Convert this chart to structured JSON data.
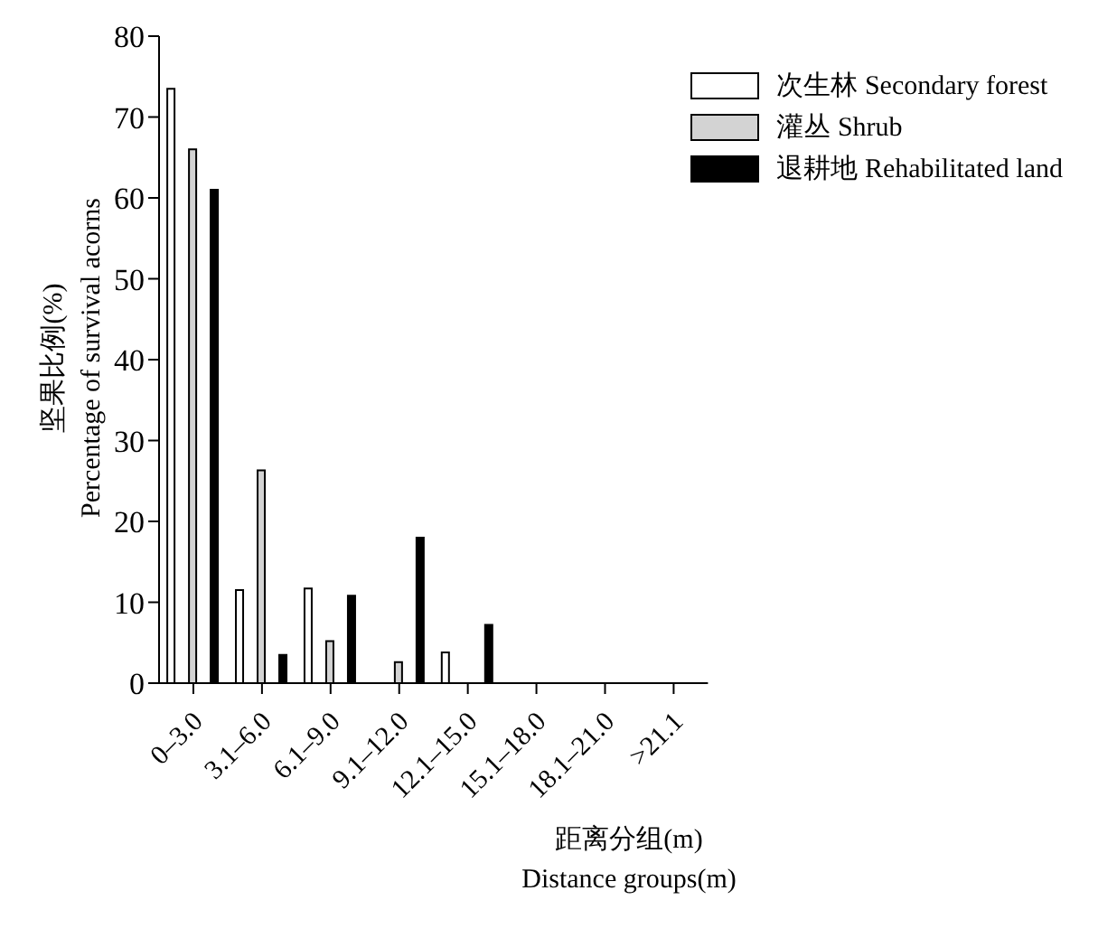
{
  "chart_data": {
    "type": "bar",
    "xlabel": "距离分组(m)\nDistance groups(m)",
    "ylabel": "坚果比例(%)\nPercentage of survival acorns",
    "categories": [
      "0–3.0",
      "3.1–6.0",
      "6.1–9.0",
      "9.1–12.0",
      "12.1–15.0",
      "15.1–18.0",
      "18.1–21.0",
      ">21.1"
    ],
    "series": [
      {
        "name": "次生林 Secondary forest",
        "color": "#ffffff",
        "values": [
          73.5,
          11.5,
          11.7,
          0,
          3.8,
          0,
          0,
          0
        ]
      },
      {
        "name": "灌丛 Shrub",
        "color": "#d3d3d3",
        "values": [
          66,
          26.3,
          5.2,
          2.6,
          0,
          0,
          0,
          0
        ]
      },
      {
        "name": "退耕地 Rehabilitated land",
        "color": "#000000",
        "values": [
          61,
          3.5,
          10.8,
          18,
          7.2,
          0,
          0,
          0
        ]
      }
    ],
    "ylim": [
      0,
      80
    ],
    "yticks": [
      0,
      10,
      20,
      30,
      40,
      50,
      60,
      70,
      80
    ],
    "grid": false,
    "legend": "top right"
  }
}
